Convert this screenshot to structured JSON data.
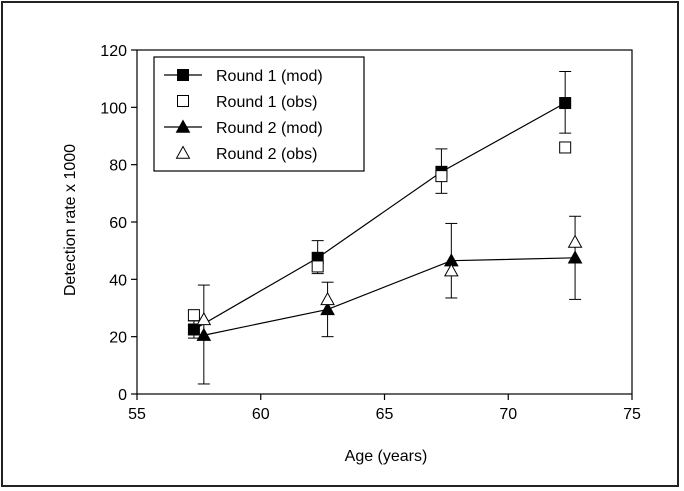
{
  "chart_data": {
    "type": "scatter",
    "title": "",
    "xlabel": "Age (years)",
    "ylabel": "Detection rate x 1000",
    "xlim": [
      55,
      75
    ],
    "ylim": [
      0,
      120
    ],
    "xticks": [
      55,
      60,
      65,
      70,
      75
    ],
    "yticks": [
      0,
      20,
      40,
      60,
      80,
      100,
      120
    ],
    "grid": false,
    "legend_position": "top-left",
    "series": [
      {
        "name": "Round 1 (mod)",
        "marker": "filled-square",
        "line": true,
        "points": [
          {
            "x": 57.3,
            "y": 22.5,
            "err_low": 19.5,
            "err_high": 25.5
          },
          {
            "x": 62.3,
            "y": 47.5,
            "err_low": 42.0,
            "err_high": 53.5
          },
          {
            "x": 67.3,
            "y": 77.5,
            "err_low": 70.0,
            "err_high": 85.5
          },
          {
            "x": 72.3,
            "y": 101.5,
            "err_low": 91.0,
            "err_high": 112.5
          }
        ]
      },
      {
        "name": "Round 1 (obs)",
        "marker": "open-square",
        "line": false,
        "points": [
          {
            "x": 57.3,
            "y": 27.5
          },
          {
            "x": 62.3,
            "y": 44.5
          },
          {
            "x": 67.3,
            "y": 76.0
          },
          {
            "x": 72.3,
            "y": 86.0
          }
        ]
      },
      {
        "name": "Round 2 (mod)",
        "marker": "filled-triangle",
        "line": true,
        "points": [
          {
            "x": 57.7,
            "y": 20.5,
            "err_low": 3.5,
            "err_high": 38.0
          },
          {
            "x": 62.7,
            "y": 29.5,
            "err_low": 20.0,
            "err_high": 39.0
          },
          {
            "x": 67.7,
            "y": 46.5,
            "err_low": 33.5,
            "err_high": 59.5
          },
          {
            "x": 72.7,
            "y": 47.5,
            "err_low": 33.0,
            "err_high": 62.0
          }
        ]
      },
      {
        "name": "Round 2 (obs)",
        "marker": "open-triangle",
        "line": false,
        "points": [
          {
            "x": 57.7,
            "y": 26.0
          },
          {
            "x": 62.7,
            "y": 33.0
          },
          {
            "x": 67.7,
            "y": 43.0
          },
          {
            "x": 72.7,
            "y": 53.0
          }
        ]
      }
    ]
  }
}
